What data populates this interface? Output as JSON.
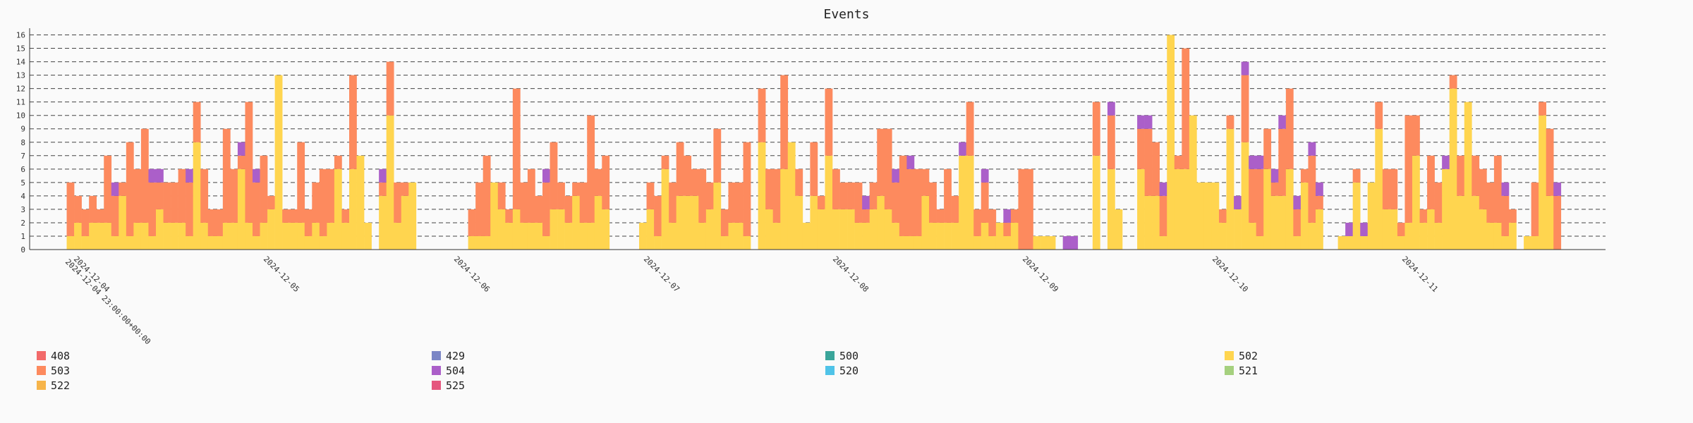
{
  "chart_data": {
    "type": "bar",
    "stacked": true,
    "title": "Events",
    "xlabel": "",
    "ylabel": "",
    "ylim": [
      0,
      16.5
    ],
    "yticks": [
      0,
      1,
      2,
      3,
      4,
      5,
      6,
      7,
      8,
      9,
      10,
      11,
      12,
      13,
      14,
      15,
      16
    ],
    "grid": "horizontal-dashed",
    "legend_position": "bottom",
    "date_labels": [
      "2024-12-04",
      "2024-12-05",
      "2024-12-06",
      "2024-12-07",
      "2024-12-08",
      "2024-12-09",
      "2024-12-10",
      "2024-12-11"
    ],
    "start_label": "2024-12-04 23:00:00+00:00",
    "series": [
      {
        "name": "408",
        "color": "#f26a6a"
      },
      {
        "name": "429",
        "color": "#7b86c6"
      },
      {
        "name": "500",
        "color": "#3aa59a"
      },
      {
        "name": "502",
        "color": "#ffd54f"
      },
      {
        "name": "503",
        "color": "#fd8a5e"
      },
      {
        "name": "504",
        "color": "#ab5fc9"
      },
      {
        "name": "520",
        "color": "#4fc3e8"
      },
      {
        "name": "521",
        "color": "#a5d07e"
      },
      {
        "name": "522",
        "color": "#f6b44a"
      },
      {
        "name": "525",
        "color": "#e5567e"
      }
    ],
    "bars": [
      [
        0,
        0,
        0
      ],
      [
        1,
        4,
        0
      ],
      [
        2,
        2,
        0
      ],
      [
        1,
        2,
        0
      ],
      [
        2,
        2,
        0
      ],
      [
        2,
        1,
        0
      ],
      [
        2,
        5,
        0
      ],
      [
        1,
        3,
        1
      ],
      [
        4,
        1,
        0
      ],
      [
        1,
        7,
        0
      ],
      [
        2,
        4,
        0
      ],
      [
        2,
        7,
        0
      ],
      [
        1,
        4,
        1
      ],
      [
        3,
        2,
        1
      ],
      [
        2,
        3,
        0
      ],
      [
        2,
        3,
        0
      ],
      [
        2,
        4,
        0
      ],
      [
        1,
        4,
        1
      ],
      [
        8,
        3,
        0
      ],
      [
        2,
        4,
        0
      ],
      [
        1,
        2,
        0
      ],
      [
        1,
        2,
        0
      ],
      [
        2,
        7,
        0
      ],
      [
        2,
        4,
        0
      ],
      [
        6,
        1,
        1
      ],
      [
        2,
        9,
        0
      ],
      [
        1,
        4,
        1
      ],
      [
        2,
        5,
        0
      ],
      [
        3,
        1,
        0
      ],
      [
        13,
        0,
        0
      ],
      [
        2,
        1,
        0
      ],
      [
        2,
        1,
        0
      ],
      [
        2,
        6,
        0
      ],
      [
        1,
        2,
        0
      ],
      [
        2,
        3,
        0
      ],
      [
        1,
        5,
        0
      ],
      [
        2,
        4,
        0
      ],
      [
        6,
        1,
        0
      ],
      [
        2,
        1,
        0
      ],
      [
        6,
        7,
        0
      ],
      [
        7,
        0,
        0
      ],
      [
        2,
        0,
        0
      ],
      [
        0,
        0,
        0
      ],
      [
        4,
        1,
        1
      ],
      [
        10,
        4,
        0
      ],
      [
        2,
        3,
        0
      ],
      [
        4,
        1,
        0
      ],
      [
        5,
        0,
        0
      ],
      [
        0,
        0,
        0
      ],
      [
        0,
        0,
        0
      ],
      [
        0,
        0,
        0
      ],
      [
        0,
        0,
        0
      ],
      [
        0,
        0,
        0
      ],
      [
        0,
        0,
        0
      ],
      [
        0,
        0,
        0
      ],
      [
        1,
        2,
        0
      ],
      [
        1,
        4,
        0
      ],
      [
        1,
        6,
        0
      ],
      [
        5,
        0,
        0
      ],
      [
        3,
        2,
        0
      ],
      [
        2,
        1,
        0
      ],
      [
        3,
        9,
        0
      ],
      [
        2,
        3,
        0
      ],
      [
        2,
        4,
        0
      ],
      [
        2,
        2,
        0
      ],
      [
        1,
        4,
        1
      ],
      [
        3,
        5,
        0
      ],
      [
        3,
        2,
        0
      ],
      [
        2,
        2,
        0
      ],
      [
        4,
        1,
        0
      ],
      [
        2,
        3,
        0
      ],
      [
        2,
        8,
        0
      ],
      [
        4,
        2,
        0
      ],
      [
        3,
        4,
        0
      ],
      [
        0,
        0,
        0
      ],
      [
        0,
        0,
        0
      ],
      [
        0,
        0,
        0
      ],
      [
        0,
        0,
        0
      ],
      [
        2,
        0,
        0
      ],
      [
        3,
        2,
        0
      ],
      [
        1,
        3,
        0
      ],
      [
        6,
        1,
        0
      ],
      [
        2,
        3,
        0
      ],
      [
        4,
        4,
        0
      ],
      [
        4,
        3,
        0
      ],
      [
        4,
        2,
        0
      ],
      [
        2,
        4,
        0
      ],
      [
        3,
        2,
        0
      ],
      [
        5,
        4,
        0
      ],
      [
        1,
        2,
        0
      ],
      [
        2,
        3,
        0
      ],
      [
        2,
        3,
        0
      ],
      [
        1,
        7,
        0
      ],
      [
        0,
        0,
        0
      ],
      [
        8,
        4,
        0
      ],
      [
        3,
        3,
        0
      ],
      [
        2,
        4,
        0
      ],
      [
        6,
        7,
        0
      ],
      [
        8,
        0,
        0
      ],
      [
        4,
        2,
        0
      ],
      [
        2,
        0,
        0
      ],
      [
        4,
        4,
        0
      ],
      [
        3,
        1,
        0
      ],
      [
        7,
        5,
        0
      ],
      [
        3,
        3,
        0
      ],
      [
        3,
        2,
        0
      ],
      [
        3,
        2,
        0
      ],
      [
        2,
        3,
        0
      ],
      [
        2,
        1,
        1
      ],
      [
        3,
        2,
        0
      ],
      [
        4,
        5,
        0
      ],
      [
        3,
        6,
        0
      ],
      [
        2,
        3,
        1
      ],
      [
        1,
        6,
        0
      ],
      [
        1,
        5,
        1
      ],
      [
        1,
        5,
        0
      ],
      [
        4,
        2,
        0
      ],
      [
        2,
        3,
        0
      ],
      [
        2,
        1,
        0
      ],
      [
        2,
        4,
        0
      ],
      [
        2,
        2,
        0
      ],
      [
        7,
        0,
        1
      ],
      [
        7,
        4,
        0
      ],
      [
        1,
        2,
        0
      ],
      [
        2,
        3,
        1
      ],
      [
        1,
        2,
        0
      ],
      [
        2,
        0,
        0
      ],
      [
        1,
        1,
        1
      ],
      [
        2,
        1,
        0
      ],
      [
        0,
        6,
        0
      ],
      [
        0,
        6,
        0
      ],
      [
        1,
        0,
        0
      ],
      [
        1,
        0,
        0
      ],
      [
        1,
        0,
        0
      ],
      [
        0,
        0,
        0
      ],
      [
        0,
        0,
        1
      ],
      [
        0,
        0,
        1
      ],
      [
        0,
        0,
        0
      ],
      [
        0,
        0,
        0
      ],
      [
        7,
        4,
        0
      ],
      [
        0,
        0,
        0
      ],
      [
        6,
        4,
        1
      ],
      [
        3,
        0,
        0
      ],
      [
        0,
        0,
        0
      ],
      [
        0,
        0,
        0
      ],
      [
        6,
        3,
        1
      ],
      [
        4,
        5,
        1
      ],
      [
        4,
        4,
        0
      ],
      [
        1,
        3,
        1
      ],
      [
        16,
        0,
        0
      ],
      [
        6,
        1,
        0
      ],
      [
        6,
        9,
        0
      ],
      [
        10,
        0,
        0
      ],
      [
        5,
        0,
        0
      ],
      [
        5,
        0,
        0
      ],
      [
        5,
        0,
        0
      ],
      [
        2,
        1,
        0
      ],
      [
        9,
        1,
        0
      ],
      [
        3,
        0,
        1
      ],
      [
        8,
        5,
        1
      ],
      [
        2,
        4,
        1
      ],
      [
        1,
        5,
        1
      ],
      [
        6,
        3,
        0
      ],
      [
        4,
        1,
        1
      ],
      [
        4,
        5,
        1
      ],
      [
        6,
        6,
        0
      ],
      [
        1,
        2,
        1
      ],
      [
        5,
        1,
        0
      ],
      [
        2,
        5,
        1
      ],
      [
        3,
        1,
        1
      ],
      [
        0,
        0,
        0
      ],
      [
        0,
        0,
        0
      ],
      [
        1,
        0,
        0
      ],
      [
        1,
        0,
        1
      ],
      [
        5,
        1,
        0
      ],
      [
        1,
        0,
        1
      ],
      [
        5,
        0,
        0
      ],
      [
        9,
        2,
        0
      ],
      [
        3,
        3,
        0
      ],
      [
        3,
        3,
        0
      ],
      [
        1,
        1,
        0
      ],
      [
        2,
        8,
        0
      ],
      [
        7,
        3,
        0
      ],
      [
        2,
        1,
        0
      ],
      [
        3,
        4,
        0
      ],
      [
        2,
        3,
        0
      ],
      [
        6,
        0,
        1
      ],
      [
        12,
        1,
        0
      ],
      [
        4,
        3,
        0
      ],
      [
        11,
        0,
        0
      ],
      [
        4,
        3,
        0
      ],
      [
        3,
        3,
        0
      ],
      [
        2,
        3,
        0
      ],
      [
        2,
        5,
        0
      ],
      [
        1,
        3,
        1
      ],
      [
        2,
        1,
        0
      ],
      [
        0,
        0,
        0
      ],
      [
        1,
        0,
        0
      ],
      [
        1,
        4,
        0
      ],
      [
        10,
        1,
        0
      ],
      [
        4,
        5,
        0
      ],
      [
        0,
        4,
        1
      ],
      [
        0,
        0,
        0
      ],
      [
        0,
        0,
        0
      ],
      [
        0,
        0,
        0
      ],
      [
        0,
        0,
        0
      ],
      [
        0,
        0,
        0
      ],
      [
        0,
        0,
        0
      ]
    ]
  }
}
